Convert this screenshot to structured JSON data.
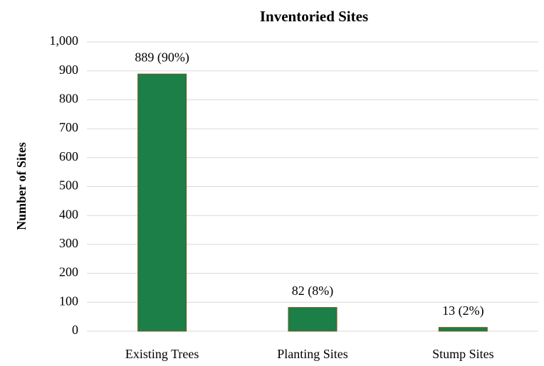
{
  "chart_data": {
    "type": "bar",
    "title": "Inventoried Sites",
    "ylabel": "Number of Sites",
    "categories": [
      "Existing Trees",
      "Planting Sites",
      "Stump Sites"
    ],
    "values": [
      889,
      82,
      13
    ],
    "value_labels": [
      "889 (90%)",
      "82 (8%)",
      "13 (2%)"
    ],
    "color": "#1b7f47",
    "edgecolor": "#6b5a1e",
    "ylim": [
      0,
      1000
    ],
    "yticks": [
      0,
      100,
      200,
      300,
      400,
      500,
      600,
      700,
      800,
      900,
      {
        "value": 1000,
        "label": "1,000"
      }
    ],
    "grid": true
  }
}
